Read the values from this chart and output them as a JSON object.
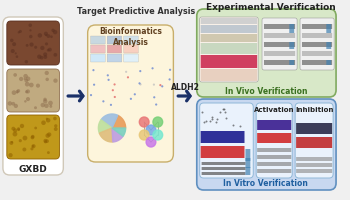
{
  "title": "Experimental Verification",
  "gxbd_label": "GXBD",
  "target_analysis_label": "Target Predictive Analysis",
  "bioinformatics_label": "Bioinformatics\nAnalysis",
  "aldh2_label": "ALDH2",
  "in_vivo_label": "In Vivo Verification",
  "in_vitro_label": "In Vitro Verification",
  "activation_label": "Activation",
  "inhibition_label": "Inhibition",
  "bg_color": "#f0f0f0",
  "gxbd_box_color": "#ffffff",
  "gxbd_box_edge": "#d0c8b8",
  "bio_box_color": "#fdf5dc",
  "bio_box_edge": "#c8ae6a",
  "in_vivo_box_color": "#d8e8c8",
  "in_vivo_box_edge": "#80aa60",
  "in_vitro_box_color": "#c8d8f0",
  "in_vitro_box_edge": "#6090c0",
  "sub_box_color": "#ddeeff",
  "sub_box_edge": "#90b8d8",
  "arrow_color": "#1a3068",
  "herb1_color": "#7a4830",
  "herb2_color": "#c0aa80",
  "herb3_color": "#c0981a"
}
